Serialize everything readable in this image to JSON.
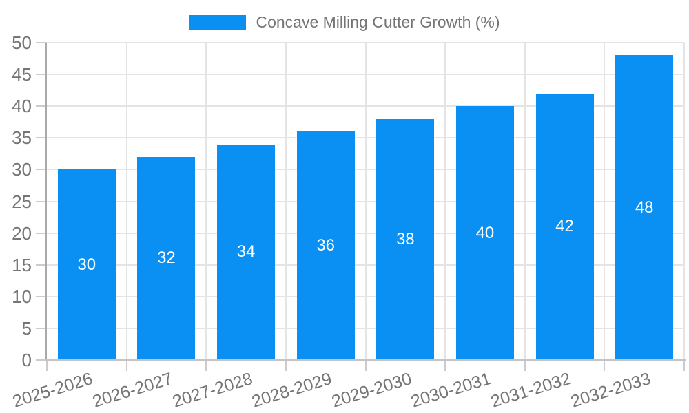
{
  "legend": {
    "label": "Concave Milling Cutter Growth (%)"
  },
  "chart_data": {
    "type": "bar",
    "title": "Concave Milling Cutter Growth (%)",
    "categories": [
      "2025-2026",
      "2026-2027",
      "2027-2028",
      "2028-2029",
      "2029-2030",
      "2030-2031",
      "2031-2032",
      "2032-2033"
    ],
    "series": [
      {
        "name": "Concave Milling Cutter Growth (%)",
        "values": [
          30,
          32,
          34,
          36,
          38,
          40,
          42,
          48
        ]
      }
    ],
    "bar_value_labels": [
      "30",
      "32",
      "34",
      "36",
      "38",
      "40",
      "42",
      "48"
    ],
    "xlabel": "",
    "ylabel": "",
    "ylim": [
      0,
      50
    ],
    "ytick_step": 5,
    "yticks": [
      0,
      5,
      10,
      15,
      20,
      25,
      30,
      35,
      40,
      45,
      50
    ],
    "grid": true,
    "legend_position": "top",
    "x_label_rotation_deg": -17
  },
  "colors": {
    "bar": "#0A90F2",
    "value_label": "#FFFFFF",
    "tick_label": "#757575",
    "legend_text": "#757575",
    "grid": "#E4E4E4",
    "y_axis_line": "#A9A9A9",
    "x_axis_line": "#C4C4C4",
    "tick_mark": "#CCCCCC",
    "background": "#FFFFFF"
  }
}
